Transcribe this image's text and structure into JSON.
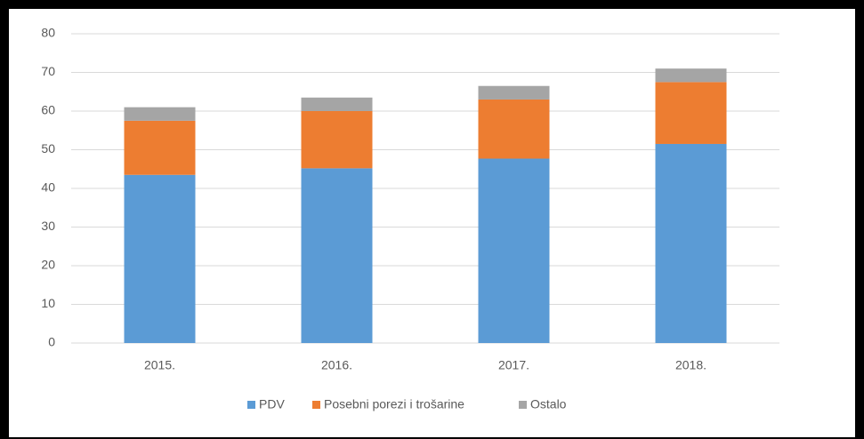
{
  "chart_data": {
    "type": "bar",
    "stacked": true,
    "categories": [
      "2015.",
      "2016.",
      "2017.",
      "2018."
    ],
    "series": [
      {
        "name": "PDV",
        "color": "#5b9bd5",
        "values": [
          43.5,
          45.2,
          47.7,
          51.5
        ]
      },
      {
        "name": "Posebni porezi i trošarine",
        "color": "#ed7d31",
        "values": [
          14.0,
          14.8,
          15.3,
          16.0
        ]
      },
      {
        "name": "Ostalo",
        "color": "#a5a5a5",
        "values": [
          3.5,
          3.5,
          3.5,
          3.5
        ]
      }
    ],
    "ylim": [
      0,
      80
    ],
    "yticks": [
      0,
      10,
      20,
      30,
      40,
      50,
      60,
      70,
      80
    ],
    "grid": true,
    "legend": "bottom"
  }
}
